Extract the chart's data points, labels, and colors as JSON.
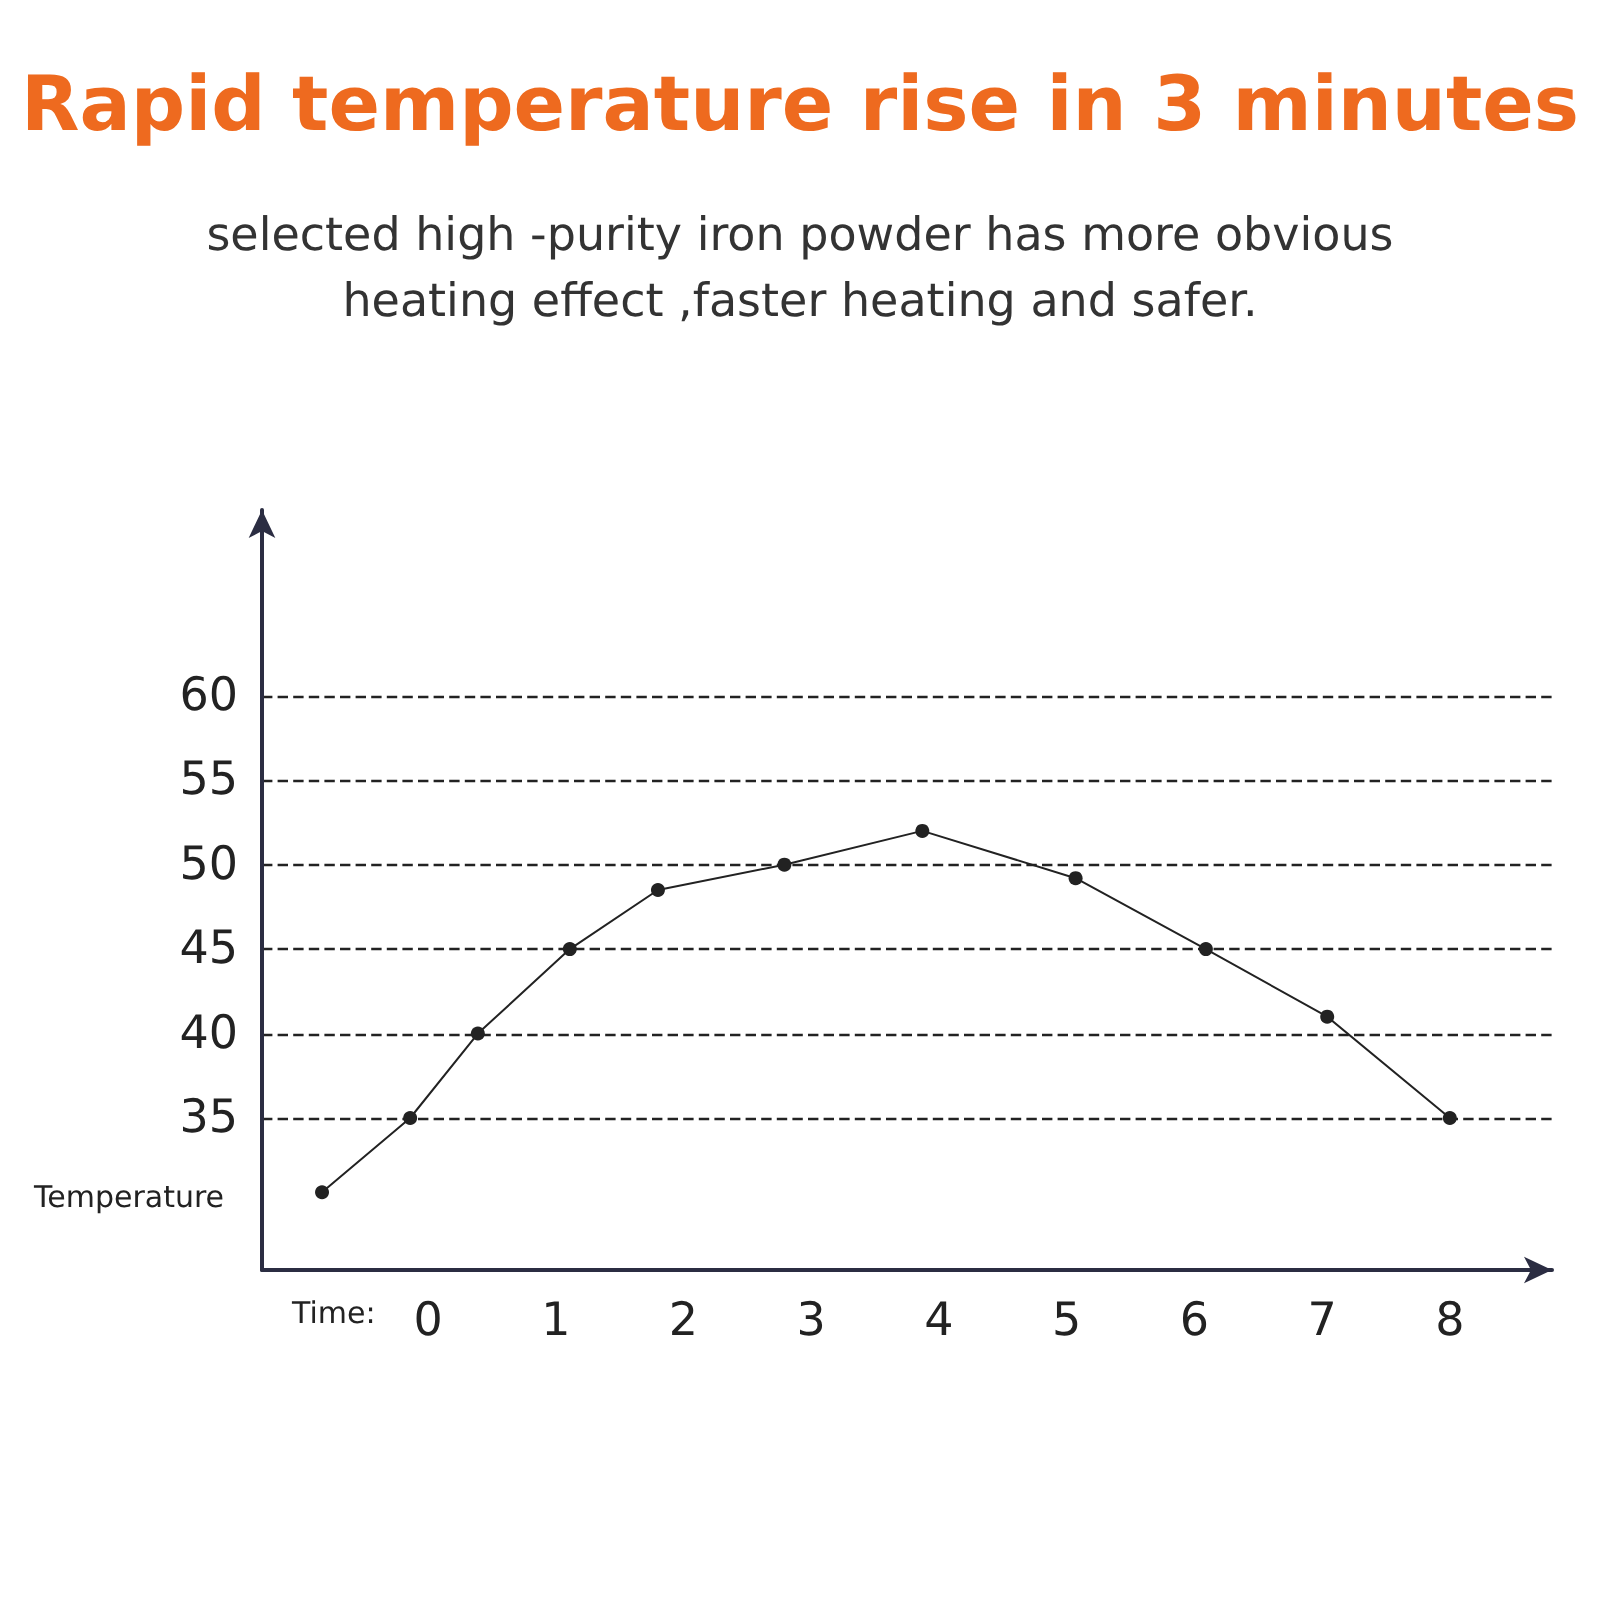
{
  "chart_data": {
    "type": "line",
    "title": "Rapid temperature rise in 3 minutes",
    "subtitle": "selected high -purity iron powder has more obvious heating effect ,faster heating and safer.",
    "xlabel": "Time:",
    "ylabel": "Temperature",
    "x": [
      -0.83,
      -0.14,
      0.39,
      1.11,
      1.8,
      2.79,
      3.87,
      5.07,
      6.09,
      7.04,
      8.0
    ],
    "values": [
      30.6,
      35,
      40,
      45,
      48.5,
      50,
      52,
      49.2,
      45,
      41,
      35
    ],
    "color": "#222222",
    "xlim": [
      -1.3,
      8.8
    ],
    "xticks": [
      0,
      1,
      2,
      3,
      4,
      5,
      6,
      7,
      8
    ],
    "ylim": [
      26,
      71
    ],
    "yticks": [
      35,
      40,
      45,
      50,
      55,
      60
    ],
    "grid": "y",
    "marker": "circle",
    "line_style": "solid"
  }
}
